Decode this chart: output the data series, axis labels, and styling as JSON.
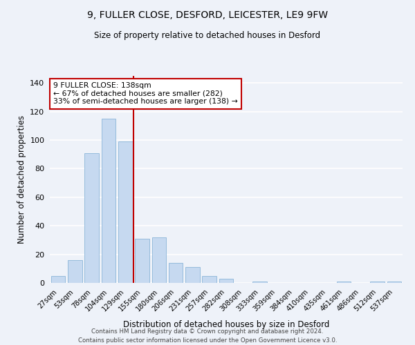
{
  "title": "9, FULLER CLOSE, DESFORD, LEICESTER, LE9 9FW",
  "subtitle": "Size of property relative to detached houses in Desford",
  "xlabel": "Distribution of detached houses by size in Desford",
  "ylabel": "Number of detached properties",
  "bar_color": "#c6d9f0",
  "bar_edgecolor": "#8ab4d8",
  "highlight_color": "#c00000",
  "background_color": "#eef2f9",
  "grid_color": "#ffffff",
  "categories": [
    "27sqm",
    "53sqm",
    "78sqm",
    "104sqm",
    "129sqm",
    "155sqm",
    "180sqm",
    "206sqm",
    "231sqm",
    "257sqm",
    "282sqm",
    "308sqm",
    "333sqm",
    "359sqm",
    "384sqm",
    "410sqm",
    "435sqm",
    "461sqm",
    "486sqm",
    "512sqm",
    "537sqm"
  ],
  "values": [
    5,
    16,
    91,
    115,
    99,
    31,
    32,
    14,
    11,
    5,
    3,
    0,
    1,
    0,
    0,
    0,
    0,
    1,
    0,
    1,
    1
  ],
  "ylim": [
    0,
    145
  ],
  "yticks": [
    0,
    20,
    40,
    60,
    80,
    100,
    120,
    140
  ],
  "vline_x": 4.5,
  "annotation_title": "9 FULLER CLOSE: 138sqm",
  "annotation_line1": "← 67% of detached houses are smaller (282)",
  "annotation_line2": "33% of semi-detached houses are larger (138) →",
  "annotation_box_color": "#ffffff",
  "annotation_box_edgecolor": "#c00000",
  "footer_line1": "Contains HM Land Registry data © Crown copyright and database right 2024.",
  "footer_line2": "Contains public sector information licensed under the Open Government Licence v3.0."
}
